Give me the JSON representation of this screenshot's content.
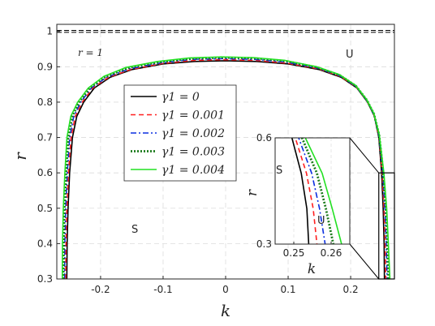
{
  "chart_data": {
    "type": "line",
    "xlabel": "k",
    "ylabel": "r",
    "xlim": [
      -0.27,
      0.27
    ],
    "ylim": [
      0.3,
      1.02
    ],
    "xticks": [
      -0.2,
      -0.1,
      0,
      0.1,
      0.2
    ],
    "xtick_labels": [
      "-0.2",
      "-0.1",
      "0",
      "0.1",
      "0.2"
    ],
    "yticks": [
      0.3,
      0.4,
      0.5,
      0.6,
      0.7,
      0.8,
      0.9,
      1
    ],
    "ytick_labels": [
      "0.3",
      "0.4",
      "0.5",
      "0.6",
      "0.7",
      "0.8",
      "0.9",
      "1"
    ],
    "grid": true,
    "legend_position": "center-left",
    "reference_line": {
      "y": 1,
      "label": "r = 1"
    },
    "region_labels": {
      "stable": "S",
      "unstable": "U"
    },
    "series": [
      {
        "name": "γ1 = 0",
        "color": "#000000",
        "dash": "solid",
        "width": 1.6,
        "x": [
          -0.254,
          -0.2535,
          -0.252,
          -0.2495,
          -0.245,
          -0.238,
          -0.227,
          -0.21,
          -0.185,
          -0.15,
          -0.1,
          -0.05,
          0,
          0.05,
          0.1,
          0.15,
          0.185,
          0.21,
          0.227,
          0.238,
          0.245,
          0.2495,
          0.252,
          0.2535,
          0.254
        ],
        "y": [
          0.3,
          0.4,
          0.5,
          0.6,
          0.7,
          0.76,
          0.8,
          0.84,
          0.87,
          0.892,
          0.908,
          0.915,
          0.917,
          0.915,
          0.908,
          0.892,
          0.87,
          0.84,
          0.8,
          0.76,
          0.7,
          0.6,
          0.5,
          0.4,
          0.3
        ]
      },
      {
        "name": "γ1 = 0.001",
        "color": "#ff1f1f",
        "dash": "6,4",
        "width": 1.6,
        "x": [
          -0.2558,
          -0.2553,
          -0.2539,
          -0.2514,
          -0.2472,
          -0.2404,
          -0.2294,
          -0.2124,
          -0.1874,
          -0.1524,
          -0.1022,
          -0.0519,
          -0.0017,
          0.0486,
          0.0988,
          0.149,
          0.1842,
          0.2094,
          0.2266,
          0.2378,
          0.2452,
          0.2504,
          0.2534,
          0.2552,
          0.2562
        ],
        "y": [
          0.3,
          0.4,
          0.5,
          0.6,
          0.7,
          0.76,
          0.8,
          0.84,
          0.87,
          0.892,
          0.909,
          0.918,
          0.92,
          0.918,
          0.91,
          0.894,
          0.872,
          0.842,
          0.802,
          0.762,
          0.702,
          0.6,
          0.5,
          0.4,
          0.3
        ]
      },
      {
        "name": "γ1 = 0.002",
        "color": "#0a2ee0",
        "dash": "7,3,2,3",
        "width": 1.6,
        "x": [
          -0.2576,
          -0.2571,
          -0.2558,
          -0.2533,
          -0.2494,
          -0.2428,
          -0.2318,
          -0.2148,
          -0.1898,
          -0.1548,
          -0.1044,
          -0.0538,
          -0.0034,
          0.0472,
          0.0976,
          0.148,
          0.1834,
          0.2088,
          0.2262,
          0.2376,
          0.2454,
          0.2513,
          0.2548,
          0.2569,
          0.2584
        ],
        "y": [
          0.3,
          0.4,
          0.5,
          0.6,
          0.7,
          0.76,
          0.8,
          0.84,
          0.871,
          0.894,
          0.911,
          0.921,
          0.923,
          0.921,
          0.913,
          0.896,
          0.874,
          0.844,
          0.804,
          0.764,
          0.704,
          0.6,
          0.5,
          0.4,
          0.3
        ]
      },
      {
        "name": "γ1 = 0.003",
        "color": "#1a7a1a",
        "dash": "2,2",
        "width": 2.8,
        "x": [
          -0.2594,
          -0.259,
          -0.2577,
          -0.2552,
          -0.2516,
          -0.2452,
          -0.2342,
          -0.2172,
          -0.1922,
          -0.1572,
          -0.1066,
          -0.0557,
          -0.0051,
          0.0458,
          0.0964,
          0.147,
          0.1826,
          0.2082,
          0.2258,
          0.2374,
          0.2456,
          0.2522,
          0.2562,
          0.2586,
          0.2606
        ],
        "y": [
          0.3,
          0.4,
          0.5,
          0.6,
          0.7,
          0.76,
          0.8,
          0.84,
          0.872,
          0.896,
          0.913,
          0.923,
          0.926,
          0.924,
          0.916,
          0.898,
          0.876,
          0.846,
          0.806,
          0.766,
          0.706,
          0.6,
          0.5,
          0.4,
          0.3
        ]
      },
      {
        "name": "γ1 = 0.004",
        "color": "#22e022",
        "dash": "solid",
        "width": 1.6,
        "x": [
          -0.2612,
          -0.2609,
          -0.2596,
          -0.2571,
          -0.2538,
          -0.2476,
          -0.2366,
          -0.2196,
          -0.1946,
          -0.1596,
          -0.1088,
          -0.0576,
          -0.0068,
          0.0444,
          0.0952,
          0.146,
          0.1818,
          0.2076,
          0.2254,
          0.2372,
          0.2458,
          0.2531,
          0.2576,
          0.2603,
          0.2628
        ],
        "y": [
          0.3,
          0.4,
          0.5,
          0.6,
          0.7,
          0.76,
          0.8,
          0.84,
          0.873,
          0.898,
          0.915,
          0.925,
          0.928,
          0.926,
          0.918,
          0.9,
          0.878,
          0.848,
          0.808,
          0.768,
          0.708,
          0.6,
          0.5,
          0.4,
          0.3
        ]
      }
    ],
    "inset": {
      "xlim": [
        0.245,
        0.265
      ],
      "ylim": [
        0.3,
        0.6
      ],
      "xticks": [
        0.25,
        0.26
      ],
      "xtick_labels": [
        "0.25",
        "0.26"
      ],
      "yticks": [
        0.3,
        0.6
      ],
      "ytick_labels": [
        "0.3",
        "0.6"
      ],
      "xlabel": "k",
      "ylabel": "r"
    }
  }
}
